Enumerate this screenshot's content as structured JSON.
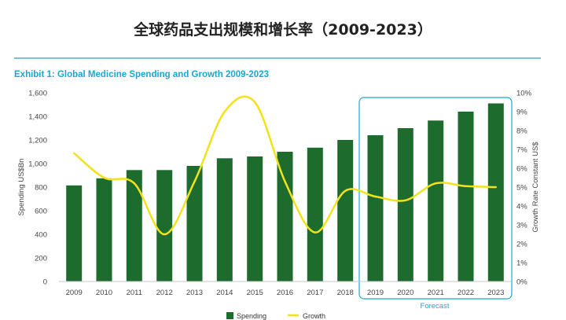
{
  "page_title": "全球药品支出规模和增长率（2009-2023）",
  "chart_data": {
    "type": "bar",
    "title": "Exhibit 1: Global Medicine Spending and Growth 2009-2023",
    "categories": [
      "2009",
      "2010",
      "2011",
      "2012",
      "2013",
      "2014",
      "2015",
      "2016",
      "2017",
      "2018",
      "2019",
      "2020",
      "2021",
      "2022",
      "2023"
    ],
    "series": [
      {
        "name": "Spending",
        "type": "bar",
        "axis": "left",
        "color": "#1e6b2e",
        "values": [
          815,
          875,
          945,
          945,
          980,
          1045,
          1060,
          1100,
          1135,
          1200,
          1240,
          1300,
          1365,
          1440,
          1510
        ]
      },
      {
        "name": "Growth",
        "type": "line",
        "axis": "right",
        "color": "#f2e21a",
        "values": [
          6.8,
          5.5,
          5.2,
          2.5,
          5.3,
          9.0,
          9.5,
          5.3,
          2.6,
          4.8,
          4.5,
          4.3,
          5.2,
          5.05,
          5.0
        ]
      }
    ],
    "ylabel_left": "Spending US$Bn",
    "ylabel_right": "Growth Rate Constant US$",
    "ylim_left": [
      0,
      1600
    ],
    "ylim_right": [
      0,
      10
    ],
    "yticks_left": [
      "0",
      "200",
      "400",
      "600",
      "800",
      "1,000",
      "1,200",
      "1,400",
      "1,600"
    ],
    "yticks_right": [
      "0%",
      "1%",
      "2%",
      "3%",
      "4%",
      "5%",
      "6%",
      "7%",
      "8%",
      "9%",
      "10%"
    ],
    "forecast": {
      "label": "Forecast",
      "from": "2019",
      "to": "2023"
    },
    "legend": {
      "placement": "bottom",
      "items": [
        "Spending",
        "Growth"
      ]
    },
    "grid": false
  },
  "colors": {
    "bar": "#1e6b2e",
    "line": "#f2e21a",
    "accent": "#1aa7d2",
    "divider": "#4fa8d8"
  }
}
